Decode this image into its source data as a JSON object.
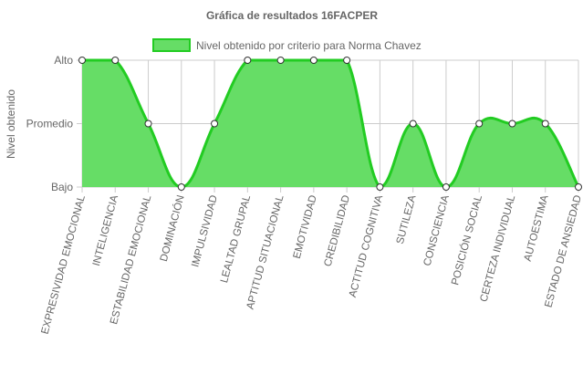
{
  "chart_data": {
    "type": "area",
    "title": "Gráfica de resultados 16FACPER",
    "ylabel": "Nivel obtenido",
    "xlabel": "",
    "y_levels": [
      "Bajo",
      "Promedio",
      "Alto"
    ],
    "ylim": [
      0,
      2
    ],
    "grid": true,
    "legend_position": "top",
    "categories": [
      "EXPRESIVIDAD EMOCIONAL",
      "INTELIGENCIA",
      "ESTABILIDAD EMOCIONAL",
      "DOMINACIÓN",
      "IMPULSIVIDAD",
      "LEALTAD GRUPAL",
      "APTITUD SITUACIONAL",
      "EMOTIVIDAD",
      "CREDIBILIDAD",
      "ACTITUD COGNITIVA",
      "SUTILEZA",
      "CONSCIENCIA",
      "POSICIÓN SOCIAL",
      "CERTEZA INDIVIDUAL",
      "AUTOESTIMA",
      "ESTADO DE ANSIEDAD"
    ],
    "series": [
      {
        "name": "Nivel obtenido por criterio para Norma Chavez",
        "values": [
          2,
          2,
          1,
          0,
          1,
          2,
          2,
          2,
          2,
          0,
          1,
          0,
          1,
          1,
          1,
          0
        ]
      }
    ],
    "colors": {
      "fill": "#66dd66",
      "line": "#22cc22",
      "point_fill": "#ffffff",
      "point_stroke": "#333333"
    }
  }
}
